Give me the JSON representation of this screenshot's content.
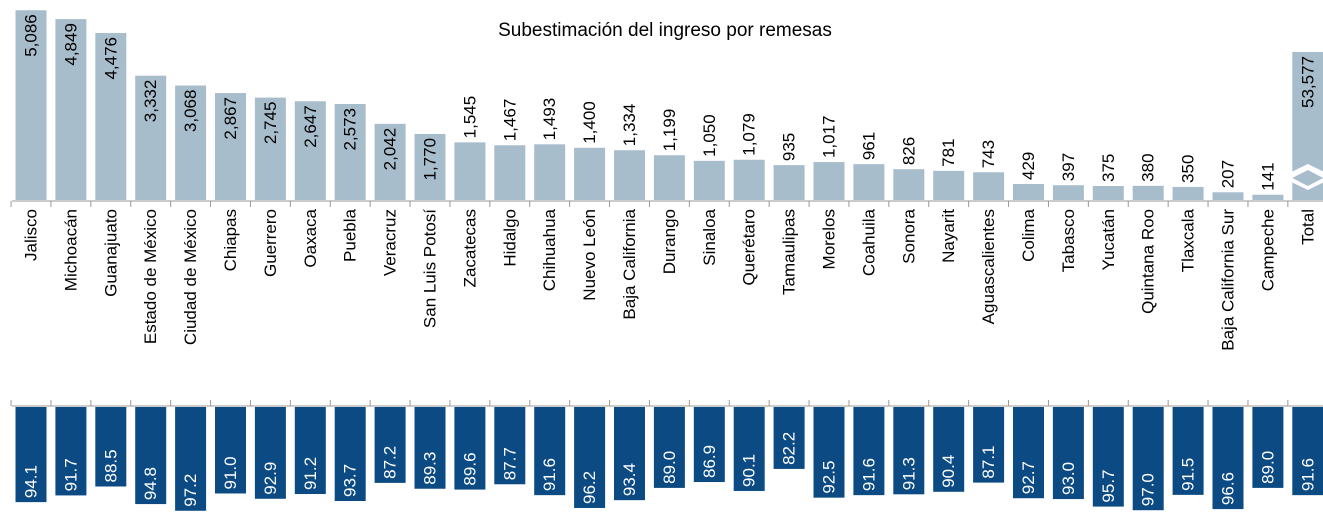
{
  "chart_data": [
    {
      "type": "bar",
      "title": "Subestimación del ingreso por remesas",
      "categories": [
        "Jalisco",
        "Michoacán",
        "Guanajuato",
        "Estado de México",
        "Ciudad de México",
        "Chiapas",
        "Guerrero",
        "Oaxaca",
        "Puebla",
        "Veracruz",
        "San Luis Potosí",
        "Zacatecas",
        "Hidalgo",
        "Chihuahua",
        "Nuevo León",
        "Baja California",
        "Durango",
        "Sinaloa",
        "Querétaro",
        "Tamaulipas",
        "Morelos",
        "Coahuila",
        "Sonora",
        "Nayarit",
        "Aguascalientes",
        "Colima",
        "Tabasco",
        "Yucatán",
        "Quintana Roo",
        "Tlaxcala",
        "Baja California Sur",
        "Campeche",
        "Total"
      ],
      "values": [
        5086,
        4849,
        4476,
        3332,
        3068,
        2867,
        2745,
        2647,
        2573,
        2042,
        1770,
        1545,
        1467,
        1493,
        1400,
        1334,
        1199,
        1050,
        1079,
        935,
        1017,
        961,
        826,
        781,
        743,
        429,
        397,
        375,
        380,
        350,
        207,
        141,
        53577
      ],
      "value_labels": [
        "5,086",
        "4,849",
        "4,476",
        "3,332",
        "3,068",
        "2,867",
        "2,745",
        "2,647",
        "2,573",
        "2,042",
        "1,770",
        "1,545",
        "1,467",
        "1,493",
        "1,400",
        "1,334",
        "1,199",
        "1,050",
        "1,079",
        "935",
        "1,017",
        "961",
        "826",
        "781",
        "743",
        "429",
        "397",
        "375",
        "380",
        "350",
        "207",
        "141",
        "53,577"
      ],
      "color": "#a8bdcc",
      "ylim": [
        0,
        5200
      ]
    },
    {
      "type": "bar",
      "values": [
        94.1,
        91.7,
        88.5,
        94.8,
        97.2,
        91.0,
        92.9,
        91.2,
        93.7,
        87.2,
        89.3,
        89.6,
        87.7,
        91.6,
        96.2,
        93.4,
        89.0,
        86.9,
        90.1,
        82.2,
        92.5,
        91.6,
        91.3,
        90.4,
        87.1,
        92.7,
        93.0,
        95.7,
        97.0,
        91.5,
        96.6,
        89.0,
        91.6
      ],
      "value_labels": [
        "94.1",
        "91.7",
        "88.5",
        "94.8",
        "97.2",
        "91.0",
        "92.9",
        "91.2",
        "93.7",
        "87.2",
        "89.3",
        "89.6",
        "87.7",
        "91.6",
        "96.2",
        "93.4",
        "89.0",
        "86.9",
        "90.1",
        "82.2",
        "92.5",
        "91.6",
        "91.3",
        "90.4",
        "87.1",
        "92.7",
        "93.0",
        "95.7",
        "97.0",
        "91.5",
        "96.6",
        "89.0",
        "91.6"
      ],
      "color": "#0c4a84",
      "ylim": [
        60,
        98
      ],
      "y_inverted": true
    }
  ]
}
